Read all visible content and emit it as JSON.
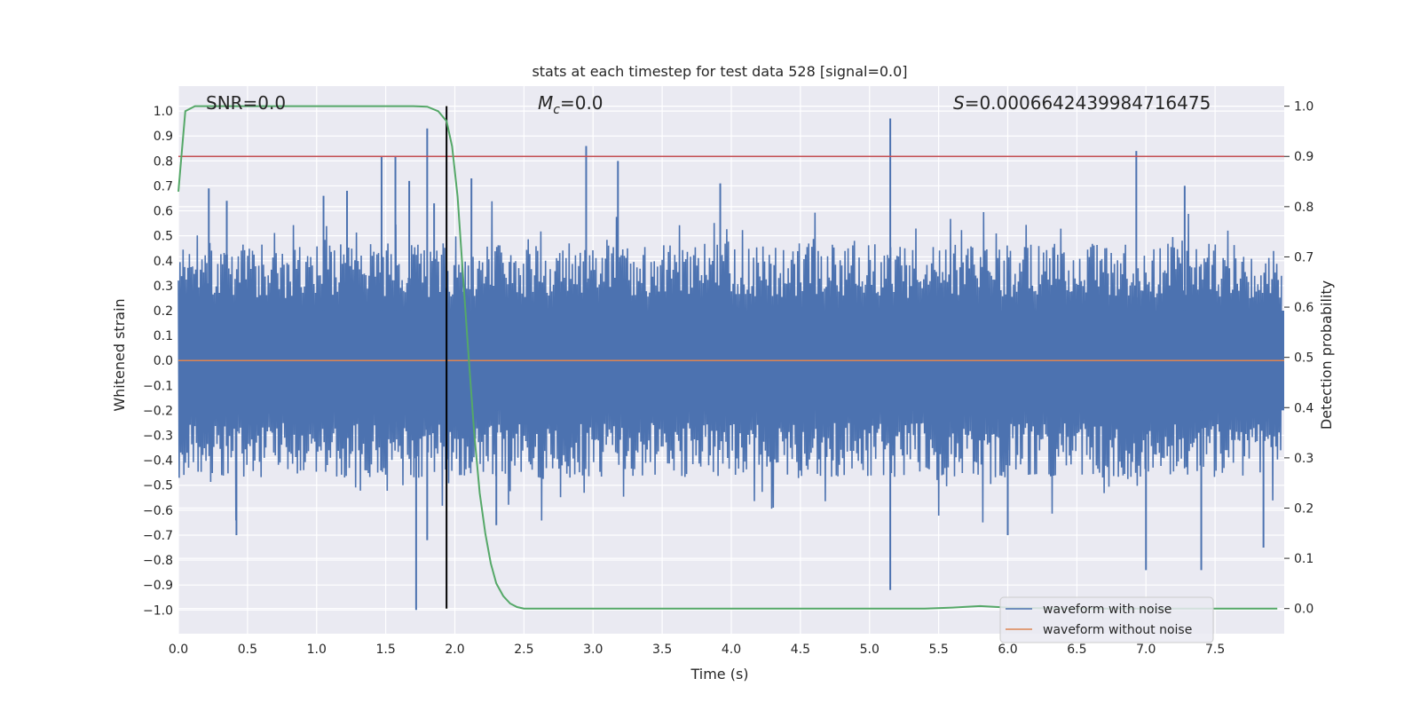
{
  "chart_data": {
    "type": "line",
    "title": "stats at each timestep for test data 528 [signal=0.0]",
    "xlabel": "Time (s)",
    "ylabel": "Whitened strain",
    "y2label": "Detection probability",
    "xlim": [
      0.0,
      8.0
    ],
    "ylim": [
      -1.095,
      1.1
    ],
    "y2lim": [
      -0.05,
      1.04
    ],
    "x_ticks": [
      "0.0",
      "0.5",
      "1.0",
      "1.5",
      "2.0",
      "2.5",
      "3.0",
      "3.5",
      "4.0",
      "4.5",
      "5.0",
      "5.5",
      "6.0",
      "6.5",
      "7.0",
      "7.5"
    ],
    "y_ticks": [
      "1.0",
      "0.9",
      "0.8",
      "0.7",
      "0.6",
      "0.5",
      "0.4",
      "0.3",
      "0.2",
      "0.1",
      "0.0",
      "−0.1",
      "−0.2",
      "−0.3",
      "−0.4",
      "−0.5",
      "−0.6",
      "−0.7",
      "−0.8",
      "−0.9",
      "−1.0"
    ],
    "y2_ticks": [
      "1.0",
      "0.9",
      "0.8",
      "0.7",
      "0.6",
      "0.5",
      "0.4",
      "0.3",
      "0.2",
      "0.1",
      "0.0"
    ],
    "annotations": {
      "snr": "SNR=0.0",
      "mc_symbol": "M",
      "mc_sub": "c",
      "mc_value": "=0.0",
      "s_symbol": "S",
      "s_value": "=0.0006642439984716475"
    },
    "legend": {
      "position": "lower-right",
      "entries": [
        "waveform with noise",
        "waveform without noise"
      ]
    },
    "colors": {
      "noise": "#4c72b0",
      "clean": "#dd8452",
      "probability": "#55a868",
      "threshold": "#c44e52",
      "marker": "#000000",
      "plot_bg": "#eaeaf2",
      "grid": "#ffffff"
    },
    "series": [
      {
        "name": "waveform with noise",
        "axis": "left",
        "description_range": [
          -1.0,
          0.97
        ],
        "spikes": [
          {
            "x": 0.22,
            "y": 0.69
          },
          {
            "x": 0.35,
            "y": 0.64
          },
          {
            "x": 1.05,
            "y": 0.66
          },
          {
            "x": 1.22,
            "y": 0.68
          },
          {
            "x": 1.47,
            "y": 0.82
          },
          {
            "x": 1.57,
            "y": 0.82
          },
          {
            "x": 1.67,
            "y": 0.72
          },
          {
            "x": 1.8,
            "y": 0.93
          },
          {
            "x": 1.85,
            "y": 0.63
          },
          {
            "x": 2.12,
            "y": 0.73
          },
          {
            "x": 2.95,
            "y": 0.86
          },
          {
            "x": 3.18,
            "y": 0.8
          },
          {
            "x": 3.92,
            "y": 0.71
          },
          {
            "x": 5.15,
            "y": 0.97
          },
          {
            "x": 6.93,
            "y": 0.84
          },
          {
            "x": 7.28,
            "y": 0.7
          },
          {
            "x": 1.72,
            "y": -1.0
          },
          {
            "x": 1.8,
            "y": -0.72
          },
          {
            "x": 2.3,
            "y": -0.66
          },
          {
            "x": 0.42,
            "y": -0.7
          },
          {
            "x": 5.15,
            "y": -0.92
          },
          {
            "x": 6.0,
            "y": -0.7
          },
          {
            "x": 7.0,
            "y": -0.84
          },
          {
            "x": 7.4,
            "y": -0.84
          },
          {
            "x": 7.85,
            "y": -0.75
          }
        ]
      },
      {
        "name": "waveform without noise",
        "axis": "left",
        "y": 0.0
      },
      {
        "name": "detection probability",
        "axis": "right",
        "x": [
          0.0,
          0.05,
          0.12,
          0.5,
          1.0,
          1.5,
          1.7,
          1.8,
          1.88,
          1.94,
          1.98,
          2.02,
          2.06,
          2.1,
          2.14,
          2.18,
          2.22,
          2.26,
          2.3,
          2.35,
          2.4,
          2.45,
          2.5,
          3.0,
          4.0,
          5.0,
          5.4,
          5.6,
          5.8,
          6.0,
          6.4,
          7.0,
          7.5,
          7.95
        ],
        "y": [
          0.83,
          0.99,
          1.0,
          1.0,
          1.0,
          1.0,
          1.0,
          0.999,
          0.99,
          0.97,
          0.92,
          0.82,
          0.66,
          0.5,
          0.35,
          0.23,
          0.15,
          0.09,
          0.05,
          0.025,
          0.01,
          0.003,
          0.0,
          0.0,
          0.0,
          0.0,
          0.0,
          0.002,
          0.005,
          0.002,
          0.0,
          0.0,
          0.0,
          0.0
        ]
      },
      {
        "name": "threshold",
        "axis": "right",
        "y": 0.9
      },
      {
        "name": "current timestep",
        "axis": "x",
        "x": 1.94
      }
    ]
  }
}
